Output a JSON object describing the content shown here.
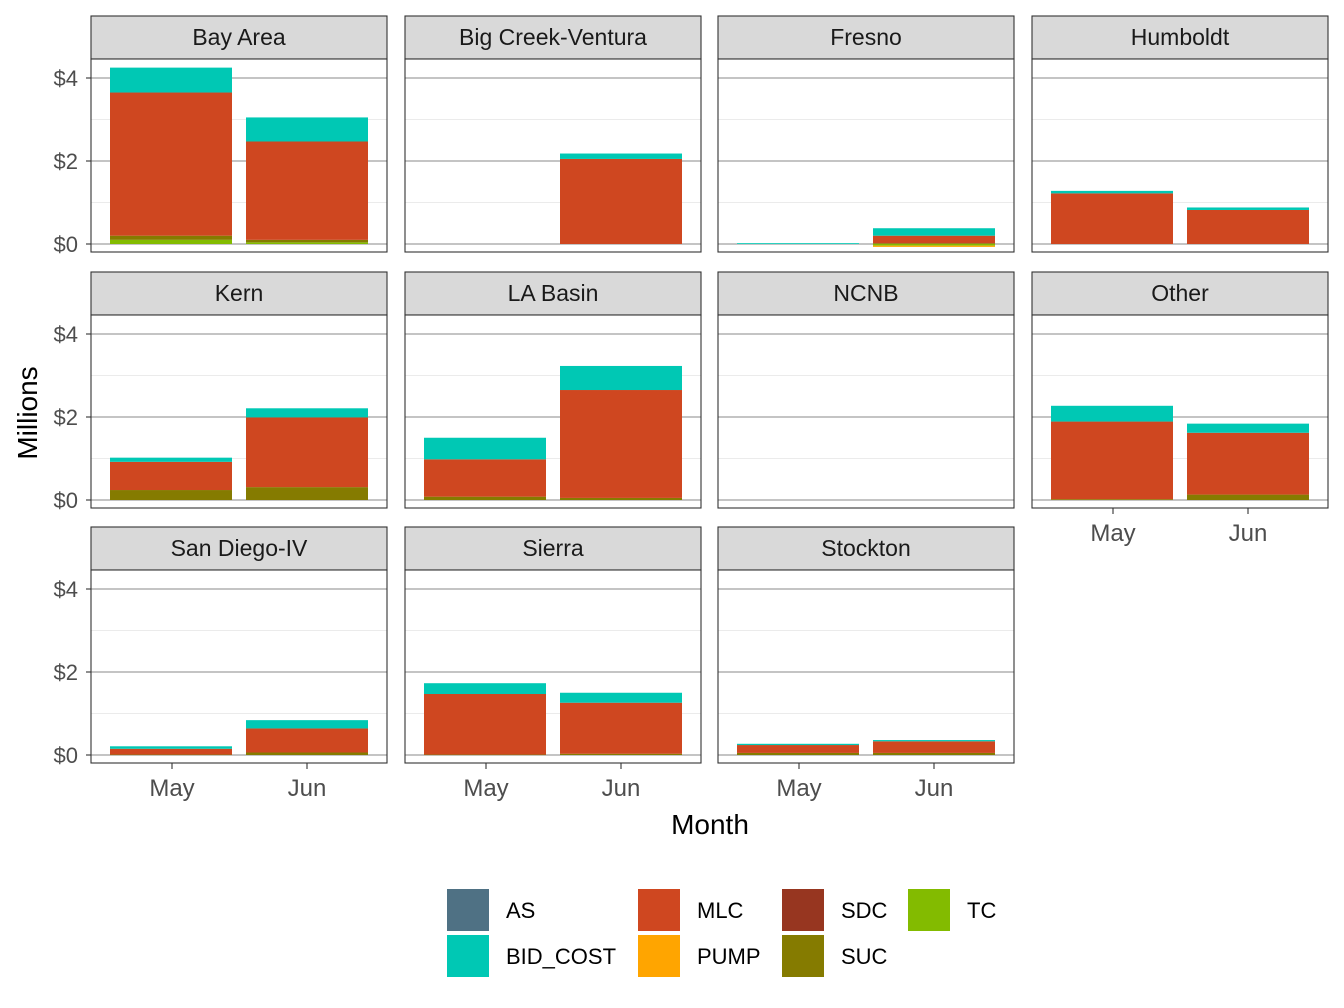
{
  "chart_data": {
    "type": "bar",
    "stacked": true,
    "faceted": true,
    "xlabel": "Month",
    "ylabel": "Millions",
    "categories": [
      "May",
      "Jun"
    ],
    "ylim": [
      -0.25,
      4.5
    ],
    "y_ticks": [
      {
        "value": 0,
        "label": "$0"
      },
      {
        "value": 2,
        "label": "$2"
      },
      {
        "value": 4,
        "label": "$4"
      }
    ],
    "grid": true,
    "legend_position": "bottom",
    "series_colors": {
      "AS": "#4f7184",
      "BID_COST": "#00c8b4",
      "MLC": "#cf4720",
      "PUMP": "#ffa500",
      "SDC": "#973620",
      "SUC": "#857b00",
      "TC": "#83bb00"
    },
    "legend": [
      "AS",
      "BID_COST",
      "MLC",
      "PUMP",
      "SDC",
      "SUC",
      "TC"
    ],
    "panels": [
      {
        "name": "Bay Area",
        "May": {
          "TC": 0.1,
          "SUC": 0.1,
          "MLC": 3.45,
          "BID_COST": 0.6
        },
        "Jun": {
          "TC": 0.04,
          "SUC": 0.06,
          "MLC": 2.37,
          "BID_COST": 0.58
        }
      },
      {
        "name": "Big Creek-Ventura",
        "May": {},
        "Jun": {
          "MLC": 2.05,
          "BID_COST": 0.13
        }
      },
      {
        "name": "Fresno",
        "May": {
          "BID_COST": 0.02
        },
        "Jun": {
          "TC": -0.04,
          "PUMP": -0.03,
          "SUC": 0.02,
          "MLC": 0.18,
          "BID_COST": 0.18
        }
      },
      {
        "name": "Humboldt",
        "May": {
          "MLC": 1.22,
          "BID_COST": 0.06
        },
        "Jun": {
          "MLC": 0.82,
          "BID_COST": 0.06
        }
      },
      {
        "name": "Kern",
        "May": {
          "SUC": 0.24,
          "MLC": 0.68,
          "BID_COST": 0.1
        },
        "Jun": {
          "SUC": 0.31,
          "MLC": 1.68,
          "BID_COST": 0.22
        }
      },
      {
        "name": "LA Basin",
        "May": {
          "SUC": 0.08,
          "MLC": 0.9,
          "BID_COST": 0.52
        },
        "Jun": {
          "SUC": 0.05,
          "MLC": 2.6,
          "BID_COST": 0.58
        }
      },
      {
        "name": "NCNB",
        "May": {},
        "Jun": {}
      },
      {
        "name": "Other",
        "May": {
          "SUC": 0.02,
          "MLC": 1.87,
          "BID_COST": 0.38
        },
        "Jun": {
          "SUC": 0.13,
          "MLC": 1.49,
          "BID_COST": 0.22
        }
      },
      {
        "name": "San Diego-IV",
        "May": {
          "SUC": 0.01,
          "MLC": 0.14,
          "BID_COST": 0.06
        },
        "Jun": {
          "SUC": 0.06,
          "MLC": 0.58,
          "BID_COST": 0.2
        }
      },
      {
        "name": "Sierra",
        "May": {
          "SUC": 0.01,
          "MLC": 1.46,
          "BID_COST": 0.26
        },
        "Jun": {
          "SUC": 0.03,
          "MLC": 1.23,
          "BID_COST": 0.24
        }
      },
      {
        "name": "Stockton",
        "May": {
          "SUC": 0.05,
          "MLC": 0.19,
          "BID_COST": 0.03
        },
        "Jun": {
          "SUC": 0.05,
          "MLC": 0.28,
          "BID_COST": 0.03
        }
      }
    ]
  }
}
